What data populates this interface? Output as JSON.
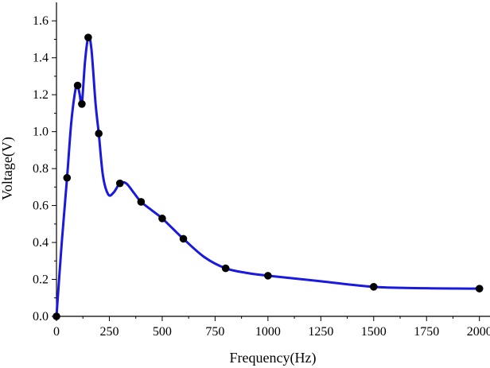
{
  "chart_data": {
    "type": "line",
    "xlabel": "Frequency(Hz)",
    "ylabel": "Voltage(V)",
    "xlim": [
      0,
      2050
    ],
    "ylim": [
      0,
      1.7
    ],
    "x_ticks": [
      0,
      250,
      500,
      750,
      1000,
      1250,
      1500,
      1750,
      2000
    ],
    "y_ticks": [
      0.0,
      0.2,
      0.4,
      0.6,
      0.8,
      1.0,
      1.2,
      1.4,
      1.6
    ],
    "x_tick_labels": [
      "0",
      "250",
      "500",
      "750",
      "1000",
      "1250",
      "1500",
      "1750",
      "2000"
    ],
    "y_tick_labels": [
      "0.0",
      "0.2",
      "0.4",
      "0.6",
      "0.8",
      "1.0",
      "1.2",
      "1.4",
      "1.6"
    ],
    "grid": false,
    "legend": "none",
    "series": [
      {
        "line_color": "#1a1adf",
        "marker_color": "#000000",
        "markers": [
          {
            "x": 0,
            "y": 0.0
          },
          {
            "x": 50,
            "y": 0.75
          },
          {
            "x": 100,
            "y": 1.25
          },
          {
            "x": 120,
            "y": 1.15
          },
          {
            "x": 150,
            "y": 1.51
          },
          {
            "x": 200,
            "y": 0.99
          },
          {
            "x": 300,
            "y": 0.72
          },
          {
            "x": 400,
            "y": 0.62
          },
          {
            "x": 500,
            "y": 0.53
          },
          {
            "x": 600,
            "y": 0.42
          },
          {
            "x": 800,
            "y": 0.26
          },
          {
            "x": 1000,
            "y": 0.22
          },
          {
            "x": 1500,
            "y": 0.16
          },
          {
            "x": 2000,
            "y": 0.15
          }
        ],
        "curve": [
          {
            "x": 0,
            "y": 0.0
          },
          {
            "x": 25,
            "y": 0.4
          },
          {
            "x": 50,
            "y": 0.75
          },
          {
            "x": 70,
            "y": 1.05
          },
          {
            "x": 90,
            "y": 1.23
          },
          {
            "x": 100,
            "y": 1.25
          },
          {
            "x": 110,
            "y": 1.2
          },
          {
            "x": 120,
            "y": 1.15
          },
          {
            "x": 135,
            "y": 1.38
          },
          {
            "x": 150,
            "y": 1.51
          },
          {
            "x": 165,
            "y": 1.45
          },
          {
            "x": 185,
            "y": 1.15
          },
          {
            "x": 200,
            "y": 0.99
          },
          {
            "x": 220,
            "y": 0.76
          },
          {
            "x": 245,
            "y": 0.66
          },
          {
            "x": 270,
            "y": 0.67
          },
          {
            "x": 300,
            "y": 0.72
          },
          {
            "x": 330,
            "y": 0.72
          },
          {
            "x": 365,
            "y": 0.67
          },
          {
            "x": 400,
            "y": 0.62
          },
          {
            "x": 450,
            "y": 0.575
          },
          {
            "x": 500,
            "y": 0.53
          },
          {
            "x": 550,
            "y": 0.475
          },
          {
            "x": 600,
            "y": 0.42
          },
          {
            "x": 700,
            "y": 0.32
          },
          {
            "x": 800,
            "y": 0.26
          },
          {
            "x": 900,
            "y": 0.235
          },
          {
            "x": 1000,
            "y": 0.22
          },
          {
            "x": 1250,
            "y": 0.19
          },
          {
            "x": 1500,
            "y": 0.16
          },
          {
            "x": 1750,
            "y": 0.152
          },
          {
            "x": 2000,
            "y": 0.15
          }
        ]
      }
    ]
  }
}
